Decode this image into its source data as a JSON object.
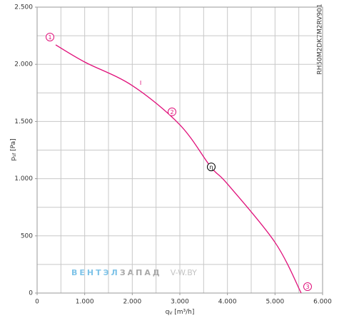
{
  "chart_data": {
    "type": "line",
    "xlabel": [
      "q",
      "V",
      " [m³/h]"
    ],
    "ylabel": [
      "p",
      "sf",
      " [Pa]"
    ],
    "side_label": "RH50M2DK7M2RV901",
    "watermark": [
      "ВЕНТЭЛ",
      "ЗАПАД",
      "V-W.BY"
    ],
    "xlim": [
      0,
      6000
    ],
    "ylim": [
      0,
      2500
    ],
    "xticks": [
      0,
      {
        "value": 1000,
        "label": "1.000"
      },
      {
        "value": 2000,
        "label": "2.000"
      },
      {
        "value": 3000,
        "label": "3.000"
      },
      {
        "value": 4000,
        "label": "4.000"
      },
      {
        "value": 5000,
        "label": "5.000"
      },
      {
        "value": 6000,
        "label": "6.000"
      }
    ],
    "yticks": [
      0,
      500,
      {
        "value": 1000,
        "label": "1.000"
      },
      {
        "value": 1500,
        "label": "1.500"
      },
      {
        "value": 2000,
        "label": "2.000"
      },
      {
        "value": 2500,
        "label": "2.500"
      }
    ],
    "xgrid": [
      500,
      1000,
      1500,
      2000,
      2500,
      3000,
      3500,
      4000,
      4500,
      5000,
      5500
    ],
    "ygrid": [
      250,
      500,
      750,
      1000,
      1250,
      1500,
      1750,
      2000,
      2250
    ],
    "grid": true,
    "series": [
      {
        "color": "#e0107a",
        "x": [
          390,
          1000,
          2000,
          3000,
          3650,
          4000,
          5000,
          5550
        ],
        "values": [
          2170,
          2020,
          1814,
          1471,
          1103,
          954,
          443,
          0
        ]
      }
    ],
    "annotations": [
      {
        "text": "1",
        "x": 270,
        "y": 2238,
        "color": "#e0107a",
        "circle": true
      },
      {
        "text": "2",
        "x": 2835,
        "y": 1584,
        "color": "#e0107a",
        "circle": true
      },
      {
        "text": "η",
        "x": 3660,
        "y": 1103,
        "color": "#000000",
        "circle": true
      },
      {
        "text": "3",
        "x": 5685,
        "y": 56,
        "color": "#e0107a",
        "circle": true
      },
      {
        "text": "I",
        "x": 2175,
        "y": 1839,
        "color": "#e0107a",
        "circle": false
      }
    ]
  }
}
